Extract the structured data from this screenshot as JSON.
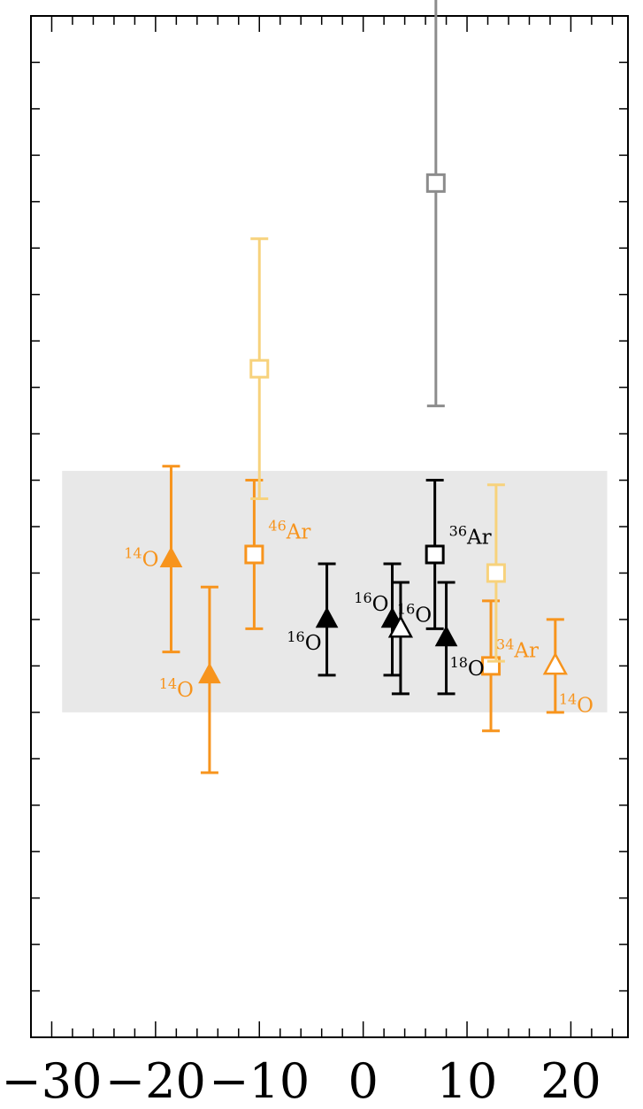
{
  "chart_data": {
    "type": "scatter",
    "title": "",
    "xlabel": "",
    "ylabel": "",
    "xlim": [
      -32,
      25.5
    ],
    "ylim": [
      0,
      11
    ],
    "x_ticks": [
      -30,
      -20,
      -10,
      0,
      10,
      20
    ],
    "x_tick_labels": [
      "−30",
      "−20",
      "−10",
      "0",
      "10",
      "20"
    ],
    "grid": false,
    "legend": "none",
    "band": {
      "y_low": 3.5,
      "y_high": 6.1,
      "x_from": -29,
      "x_to": 23.5,
      "color": "#e8e8e8"
    },
    "colors": {
      "orange": "#F7941D",
      "light_orange": "#F7D27C",
      "black": "#000000",
      "gray": "#8C8C8C"
    },
    "points": [
      {
        "x": -18.5,
        "y": 5.15,
        "y_err_low": 1.0,
        "y_err_high": 1.0,
        "marker": "triangle-filled",
        "color": "#F7941D",
        "label": {
          "sup": "14",
          "text": "O",
          "anchor": "left"
        }
      },
      {
        "x": -14.8,
        "y": 3.9,
        "y_err_low": 1.05,
        "y_err_high": 0.95,
        "marker": "triangle-filled",
        "color": "#F7941D",
        "label": {
          "sup": "14",
          "text": "O",
          "anchor": "left"
        }
      },
      {
        "x": -10.5,
        "y": 5.2,
        "y_err_low": 0.8,
        "y_err_high": 0.8,
        "marker": "square-open",
        "color": "#F7941D",
        "label": {
          "sup": "46",
          "text": "Ar",
          "anchor": "right"
        }
      },
      {
        "x": -10.0,
        "y": 7.2,
        "y_err_low": 1.4,
        "y_err_high": 1.4,
        "marker": "square-open",
        "color": "#F7D27C"
      },
      {
        "x": -3.5,
        "y": 4.5,
        "y_err_low": 0.6,
        "y_err_high": 0.6,
        "marker": "triangle-filled",
        "color": "#000000",
        "label": {
          "sup": "16",
          "text": "O",
          "anchor": "left"
        }
      },
      {
        "x": 2.8,
        "y": 4.5,
        "y_err_low": 0.6,
        "y_err_high": 0.6,
        "marker": "triangle-filled",
        "color": "#000000",
        "label": {
          "sup": "16",
          "text": "O",
          "anchor": "left"
        }
      },
      {
        "x": 3.6,
        "y": 4.4,
        "y_err_low": 0.7,
        "y_err_high": 0.5,
        "marker": "triangle-open",
        "color": "#000000",
        "label": {
          "sup": "16",
          "text": "O",
          "anchor": "right"
        }
      },
      {
        "x": 6.9,
        "y": 5.2,
        "y_err_low": 0.8,
        "y_err_high": 0.8,
        "marker": "square-open",
        "color": "#000000",
        "label": {
          "sup": "36",
          "text": "Ar",
          "anchor": "right"
        }
      },
      {
        "x": 7.0,
        "y": 9.2,
        "y_err_low": 2.4,
        "y_err_high": 2.4,
        "marker": "square-open",
        "color": "#8C8C8C"
      },
      {
        "x": 8.0,
        "y": 4.3,
        "y_err_low": 0.6,
        "y_err_high": 0.6,
        "marker": "triangle-filled",
        "color": "#000000",
        "label": {
          "sup": "18",
          "text": "O",
          "anchor": "right"
        }
      },
      {
        "x": 12.3,
        "y": 4.0,
        "y_err_low": 0.7,
        "y_err_high": 0.7,
        "marker": "square-open",
        "color": "#F7941D",
        "label": {
          "sup": "34",
          "text": "Ar",
          "anchor": "right"
        }
      },
      {
        "x": 12.8,
        "y": 5.0,
        "y_err_low": 0.95,
        "y_err_high": 0.95,
        "marker": "square-open",
        "color": "#F7D27C"
      },
      {
        "x": 18.5,
        "y": 4.0,
        "y_err_low": 0.5,
        "y_err_high": 0.5,
        "marker": "triangle-open",
        "color": "#F7941D",
        "label": {
          "sup": "14",
          "text": "O",
          "anchor": "below"
        }
      }
    ]
  }
}
